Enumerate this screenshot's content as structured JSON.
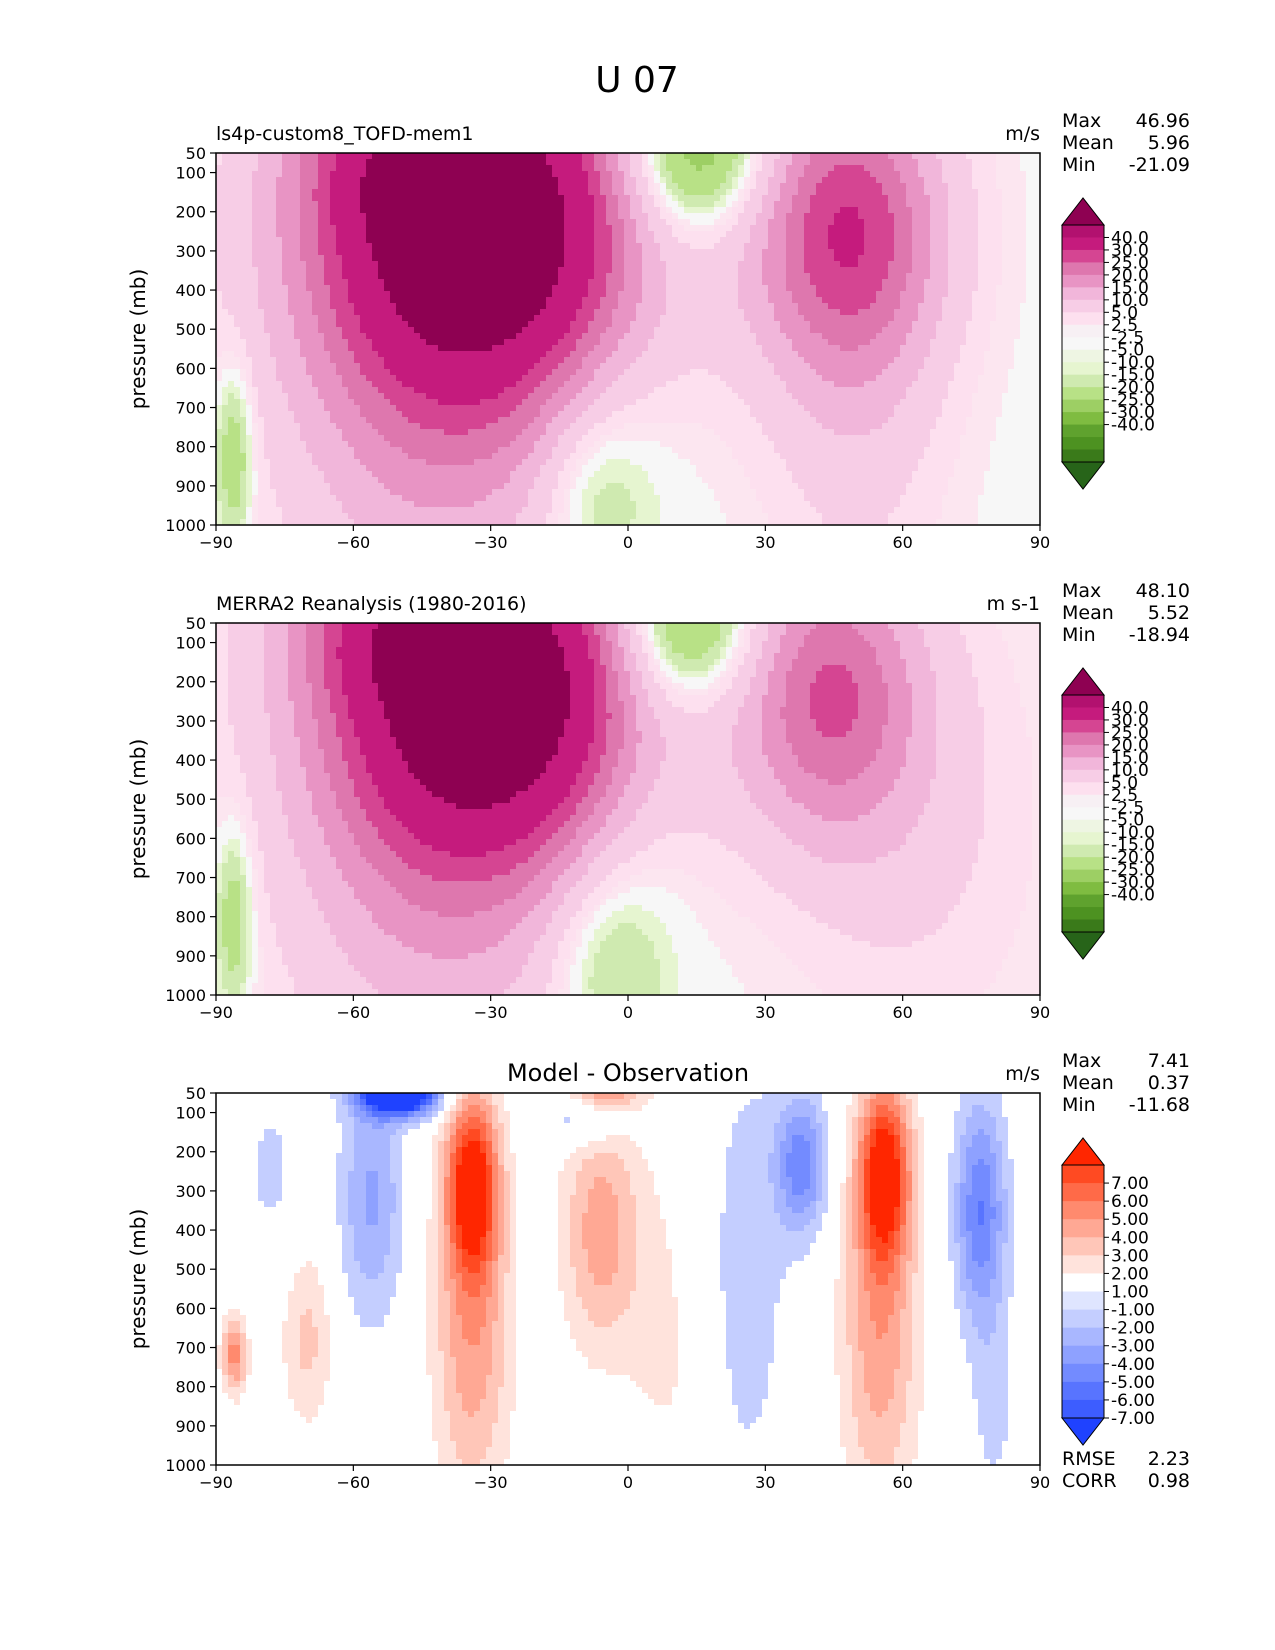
{
  "figure": {
    "title": "U 07"
  },
  "colormaps": {
    "pinkgreen": [
      "#8e0152",
      "#b2116f",
      "#c51b7d",
      "#d54592",
      "#de77ae",
      "#e894c4",
      "#f1b6da",
      "#f7cde6",
      "#fde0ef",
      "#f7f0f4",
      "#f7f7f7",
      "#eef5e3",
      "#e6f5d0",
      "#cfeab0",
      "#b8e186",
      "#9dcf64",
      "#7fbc41",
      "#5fa22e",
      "#4d9221",
      "#3a7a1a",
      "#276419"
    ],
    "bluered": [
      "#ff2600",
      "#ff4a22",
      "#ff6a48",
      "#ff8a6e",
      "#ffa894",
      "#ffc6b8",
      "#ffe3dc",
      "#ffffff",
      "#dfe5ff",
      "#c4ceff",
      "#a9b7ff",
      "#8ea1ff",
      "#738bff",
      "#5874ff",
      "#3d5dff",
      "#1f42ff"
    ]
  },
  "chart_data": [
    {
      "type": "contour",
      "id": "model",
      "title_left": "ls4p-custom8_TOFD-mem1",
      "units": "m/s",
      "ylabel": "pressure (mb)",
      "x_ticks": [
        -90,
        -60,
        -30,
        0,
        30,
        60,
        90
      ],
      "x_tick_labels": [
        "−90",
        "−60",
        "−30",
        "0",
        "30",
        "60",
        "90"
      ],
      "y_ticks": [
        50,
        100,
        200,
        300,
        400,
        500,
        600,
        700,
        800,
        900,
        1000
      ],
      "y_tick_labels": [
        "50",
        "100",
        "200",
        "300",
        "400",
        "500",
        "600",
        "700",
        "800",
        "900",
        "1000"
      ],
      "xlim": [
        -90,
        90
      ],
      "ylim": [
        1000,
        50
      ],
      "stats": [
        {
          "label": "Max",
          "value": "46.96"
        },
        {
          "label": "Mean",
          "value": "5.96"
        },
        {
          "label": "Min",
          "value": "-21.09"
        }
      ],
      "colorbar": {
        "cmap": "pinkgreen",
        "labels": [
          "40.0",
          "30.0",
          "25.0",
          "20.0",
          "15.0",
          "10.0",
          "5.0",
          "2.5",
          "-2.5",
          "-5.0",
          "-10.0",
          "-15.0",
          "-20.0",
          "-25.0",
          "-30.0",
          "-40.0"
        ]
      },
      "features": [
        {
          "lat": -32,
          "p": 230,
          "amp": 47,
          "sx": 26,
          "sy": 330
        },
        {
          "lat": -50,
          "p": 60,
          "amp": 10,
          "sx": 16,
          "sy": 140
        },
        {
          "lat": -42,
          "p": 700,
          "amp": 13,
          "sx": 24,
          "sy": 480
        },
        {
          "lat": 48,
          "p": 240,
          "amp": 28,
          "sx": 15,
          "sy": 270
        },
        {
          "lat": 50,
          "p": 750,
          "amp": 6,
          "sx": 14,
          "sy": 400
        },
        {
          "lat": 15,
          "p": 50,
          "amp": -20,
          "sx": 11,
          "sy": 150
        },
        {
          "lat": 5,
          "p": 350,
          "amp": -3,
          "sx": 10,
          "sy": 600
        },
        {
          "lat": -8,
          "p": 880,
          "amp": -9,
          "sx": 9,
          "sy": 190
        },
        {
          "lat": -86,
          "p": 820,
          "amp": -11,
          "sx": 3,
          "sy": 160
        }
      ]
    },
    {
      "type": "contour",
      "id": "obs",
      "title_left": "MERRA2 Reanalysis (1980-2016)",
      "units": "m s-1",
      "ylabel": "pressure (mb)",
      "x_ticks": [
        -90,
        -60,
        -30,
        0,
        30,
        60,
        90
      ],
      "x_tick_labels": [
        "−90",
        "−60",
        "−30",
        "0",
        "30",
        "60",
        "90"
      ],
      "y_ticks": [
        50,
        100,
        200,
        300,
        400,
        500,
        600,
        700,
        800,
        900,
        1000
      ],
      "y_tick_labels": [
        "50",
        "100",
        "200",
        "300",
        "400",
        "500",
        "600",
        "700",
        "800",
        "900",
        "1000"
      ],
      "xlim": [
        -90,
        90
      ],
      "ylim": [
        1000,
        50
      ],
      "stats": [
        {
          "label": "Max",
          "value": "48.10"
        },
        {
          "label": "Mean",
          "value": "5.52"
        },
        {
          "label": "Min",
          "value": "-18.94"
        }
      ],
      "colorbar": {
        "cmap": "pinkgreen",
        "labels": [
          "40.0",
          "30.0",
          "25.0",
          "20.0",
          "15.0",
          "10.0",
          "5.0",
          "2.5",
          "-2.5",
          "-5.0",
          "-10.0",
          "-15.0",
          "-20.0",
          "-25.0",
          "-30.0",
          "-40.0"
        ]
      },
      "features": [
        {
          "lat": -30,
          "p": 210,
          "amp": 48,
          "sx": 25,
          "sy": 320
        },
        {
          "lat": -52,
          "p": 60,
          "amp": 10,
          "sx": 16,
          "sy": 130
        },
        {
          "lat": -42,
          "p": 700,
          "amp": 12,
          "sx": 24,
          "sy": 470
        },
        {
          "lat": 44,
          "p": 230,
          "amp": 23,
          "sx": 14,
          "sy": 260
        },
        {
          "lat": 62,
          "p": 550,
          "amp": 6,
          "sx": 20,
          "sy": 420
        },
        {
          "lat": 13,
          "p": 50,
          "amp": -19,
          "sx": 11,
          "sy": 150
        },
        {
          "lat": 3,
          "p": 350,
          "amp": -4,
          "sx": 10,
          "sy": 600
        },
        {
          "lat": -6,
          "p": 880,
          "amp": -8,
          "sx": 9,
          "sy": 190
        },
        {
          "lat": -86,
          "p": 800,
          "amp": -10,
          "sx": 3,
          "sy": 170
        }
      ]
    },
    {
      "type": "contour",
      "id": "diff",
      "title_center": "Model - Observation",
      "units": "m/s",
      "ylabel": "pressure (mb)",
      "x_ticks": [
        -90,
        -60,
        -30,
        0,
        30,
        60,
        90
      ],
      "x_tick_labels": [
        "−90",
        "−60",
        "−30",
        "0",
        "30",
        "60",
        "90"
      ],
      "y_ticks": [
        50,
        100,
        200,
        300,
        400,
        500,
        600,
        700,
        800,
        900,
        1000
      ],
      "y_tick_labels": [
        "50",
        "100",
        "200",
        "300",
        "400",
        "500",
        "600",
        "700",
        "800",
        "900",
        "1000"
      ],
      "xlim": [
        -90,
        90
      ],
      "ylim": [
        1000,
        50
      ],
      "stats": [
        {
          "label": "Max",
          "value": "7.41"
        },
        {
          "label": "Mean",
          "value": "0.37"
        },
        {
          "label": "Min",
          "value": "-11.68"
        }
      ],
      "extra_stats": [
        {
          "label": "RMSE",
          "value": "2.23"
        },
        {
          "label": "CORR",
          "value": "0.98"
        }
      ],
      "colorbar": {
        "cmap": "bluered",
        "labels": [
          "7.00",
          "6.00",
          "5.00",
          "4.00",
          "3.00",
          "2.00",
          "1.00",
          "-1.00",
          "-2.00",
          "-3.00",
          "-4.00",
          "-5.00",
          "-6.00",
          "-7.00"
        ]
      },
      "features": [
        {
          "lat": -50,
          "p": 50,
          "amp": -11.7,
          "sx": 6,
          "sy": 40
        },
        {
          "lat": -56,
          "p": 320,
          "amp": -3.2,
          "sx": 5,
          "sy": 220
        },
        {
          "lat": -78,
          "p": 250,
          "amp": -1.3,
          "sx": 4,
          "sy": 150
        },
        {
          "lat": -34,
          "p": 280,
          "amp": 7.4,
          "sx": 4,
          "sy": 160
        },
        {
          "lat": -34,
          "p": 650,
          "amp": 3.8,
          "sx": 6,
          "sy": 320
        },
        {
          "lat": -86,
          "p": 720,
          "amp": 4.5,
          "sx": 2,
          "sy": 70
        },
        {
          "lat": -70,
          "p": 680,
          "amp": 2.3,
          "sx": 4,
          "sy": 160
        },
        {
          "lat": -10,
          "p": 120,
          "amp": -2.2,
          "sx": 6,
          "sy": 50
        },
        {
          "lat": -5,
          "p": 50,
          "amp": 3.2,
          "sx": 6,
          "sy": 30
        },
        {
          "lat": -6,
          "p": 400,
          "amp": 3.6,
          "sx": 6,
          "sy": 220
        },
        {
          "lat": 8,
          "p": 700,
          "amp": 1.3,
          "sx": 6,
          "sy": 350
        },
        {
          "lat": -4,
          "p": 930,
          "amp": -1.3,
          "sx": 7,
          "sy": 60
        },
        {
          "lat": 26,
          "p": 500,
          "amp": -1.4,
          "sx": 8,
          "sy": 500
        },
        {
          "lat": 38,
          "p": 230,
          "amp": -4.5,
          "sx": 4,
          "sy": 120
        },
        {
          "lat": 56,
          "p": 250,
          "amp": 7.4,
          "sx": 4,
          "sy": 160
        },
        {
          "lat": 55,
          "p": 650,
          "amp": 3.8,
          "sx": 6,
          "sy": 330
        },
        {
          "lat": 77,
          "p": 350,
          "amp": -5.0,
          "sx": 4,
          "sy": 200
        },
        {
          "lat": 80,
          "p": 850,
          "amp": -1.3,
          "sx": 4,
          "sy": 200
        }
      ]
    }
  ]
}
